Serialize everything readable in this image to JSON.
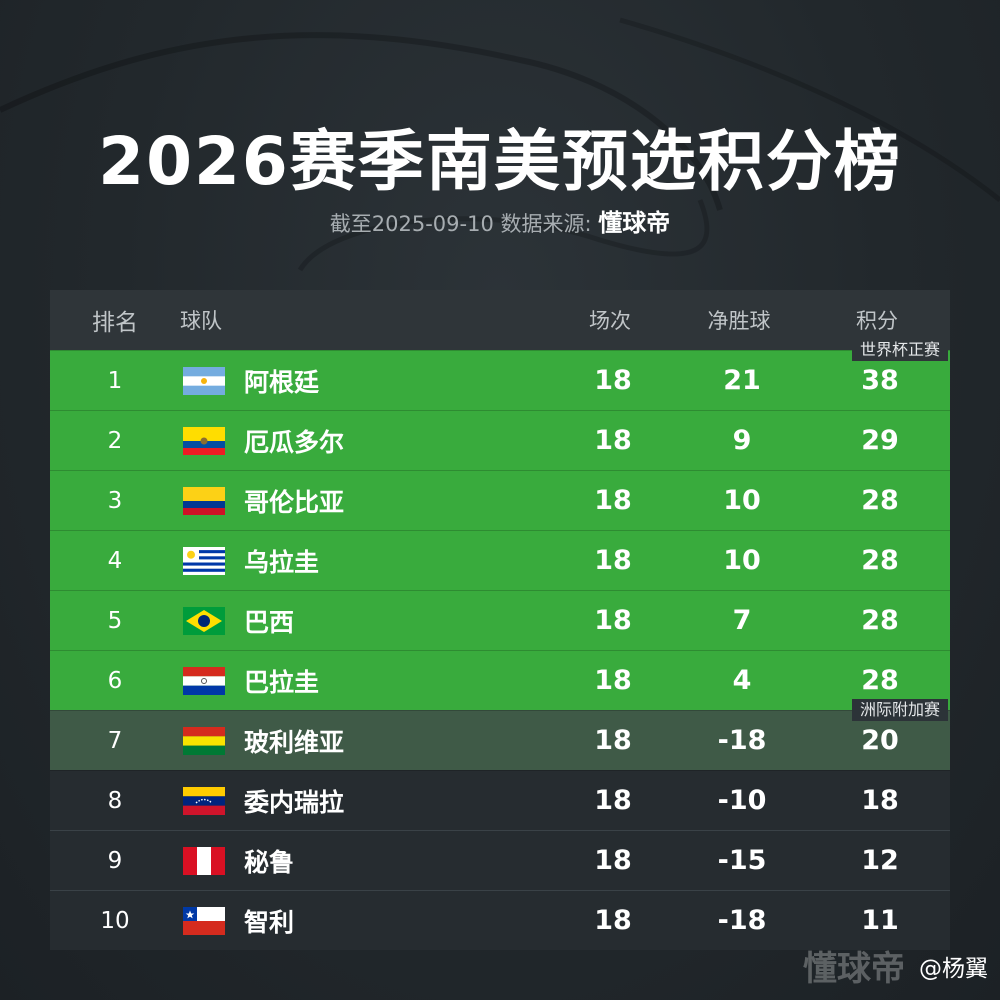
{
  "title": "2026赛季南美预选积分榜",
  "subtitle": {
    "prefix": "截至2025-09-10 数据来源: ",
    "source": "懂球帝"
  },
  "table": {
    "headers": {
      "rank": "排名",
      "team": "球队",
      "played": "场次",
      "goal_diff": "净胜球",
      "points": "积分"
    },
    "tags": {
      "direct": "世界杯正赛",
      "playoff": "洲际附加赛"
    },
    "rows": [
      {
        "rank": "1",
        "team": "阿根廷",
        "flag": "argentina-flag-icon",
        "played": "18",
        "gd": "21",
        "pts": "38"
      },
      {
        "rank": "2",
        "team": "厄瓜多尔",
        "flag": "ecuador-flag-icon",
        "played": "18",
        "gd": "9",
        "pts": "29"
      },
      {
        "rank": "3",
        "team": "哥伦比亚",
        "flag": "colombia-flag-icon",
        "played": "18",
        "gd": "10",
        "pts": "28"
      },
      {
        "rank": "4",
        "team": "乌拉圭",
        "flag": "uruguay-flag-icon",
        "played": "18",
        "gd": "10",
        "pts": "28"
      },
      {
        "rank": "5",
        "team": "巴西",
        "flag": "brazil-flag-icon",
        "played": "18",
        "gd": "7",
        "pts": "28"
      },
      {
        "rank": "6",
        "team": "巴拉圭",
        "flag": "paraguay-flag-icon",
        "played": "18",
        "gd": "4",
        "pts": "28"
      },
      {
        "rank": "7",
        "team": "玻利维亚",
        "flag": "bolivia-flag-icon",
        "played": "18",
        "gd": "-18",
        "pts": "20"
      },
      {
        "rank": "8",
        "team": "委内瑞拉",
        "flag": "venezuela-flag-icon",
        "played": "18",
        "gd": "-10",
        "pts": "18"
      },
      {
        "rank": "9",
        "team": "秘鲁",
        "flag": "peru-flag-icon",
        "played": "18",
        "gd": "-15",
        "pts": "12"
      },
      {
        "rank": "10",
        "team": "智利",
        "flag": "chile-flag-icon",
        "played": "18",
        "gd": "-18",
        "pts": "11"
      }
    ]
  },
  "colors": {
    "direct_row": "#39ab3d",
    "playoff_row": "#3f5a47",
    "other_row": "#262c30"
  },
  "watermark": {
    "logo": "懂球帝",
    "user": "@杨翼"
  }
}
